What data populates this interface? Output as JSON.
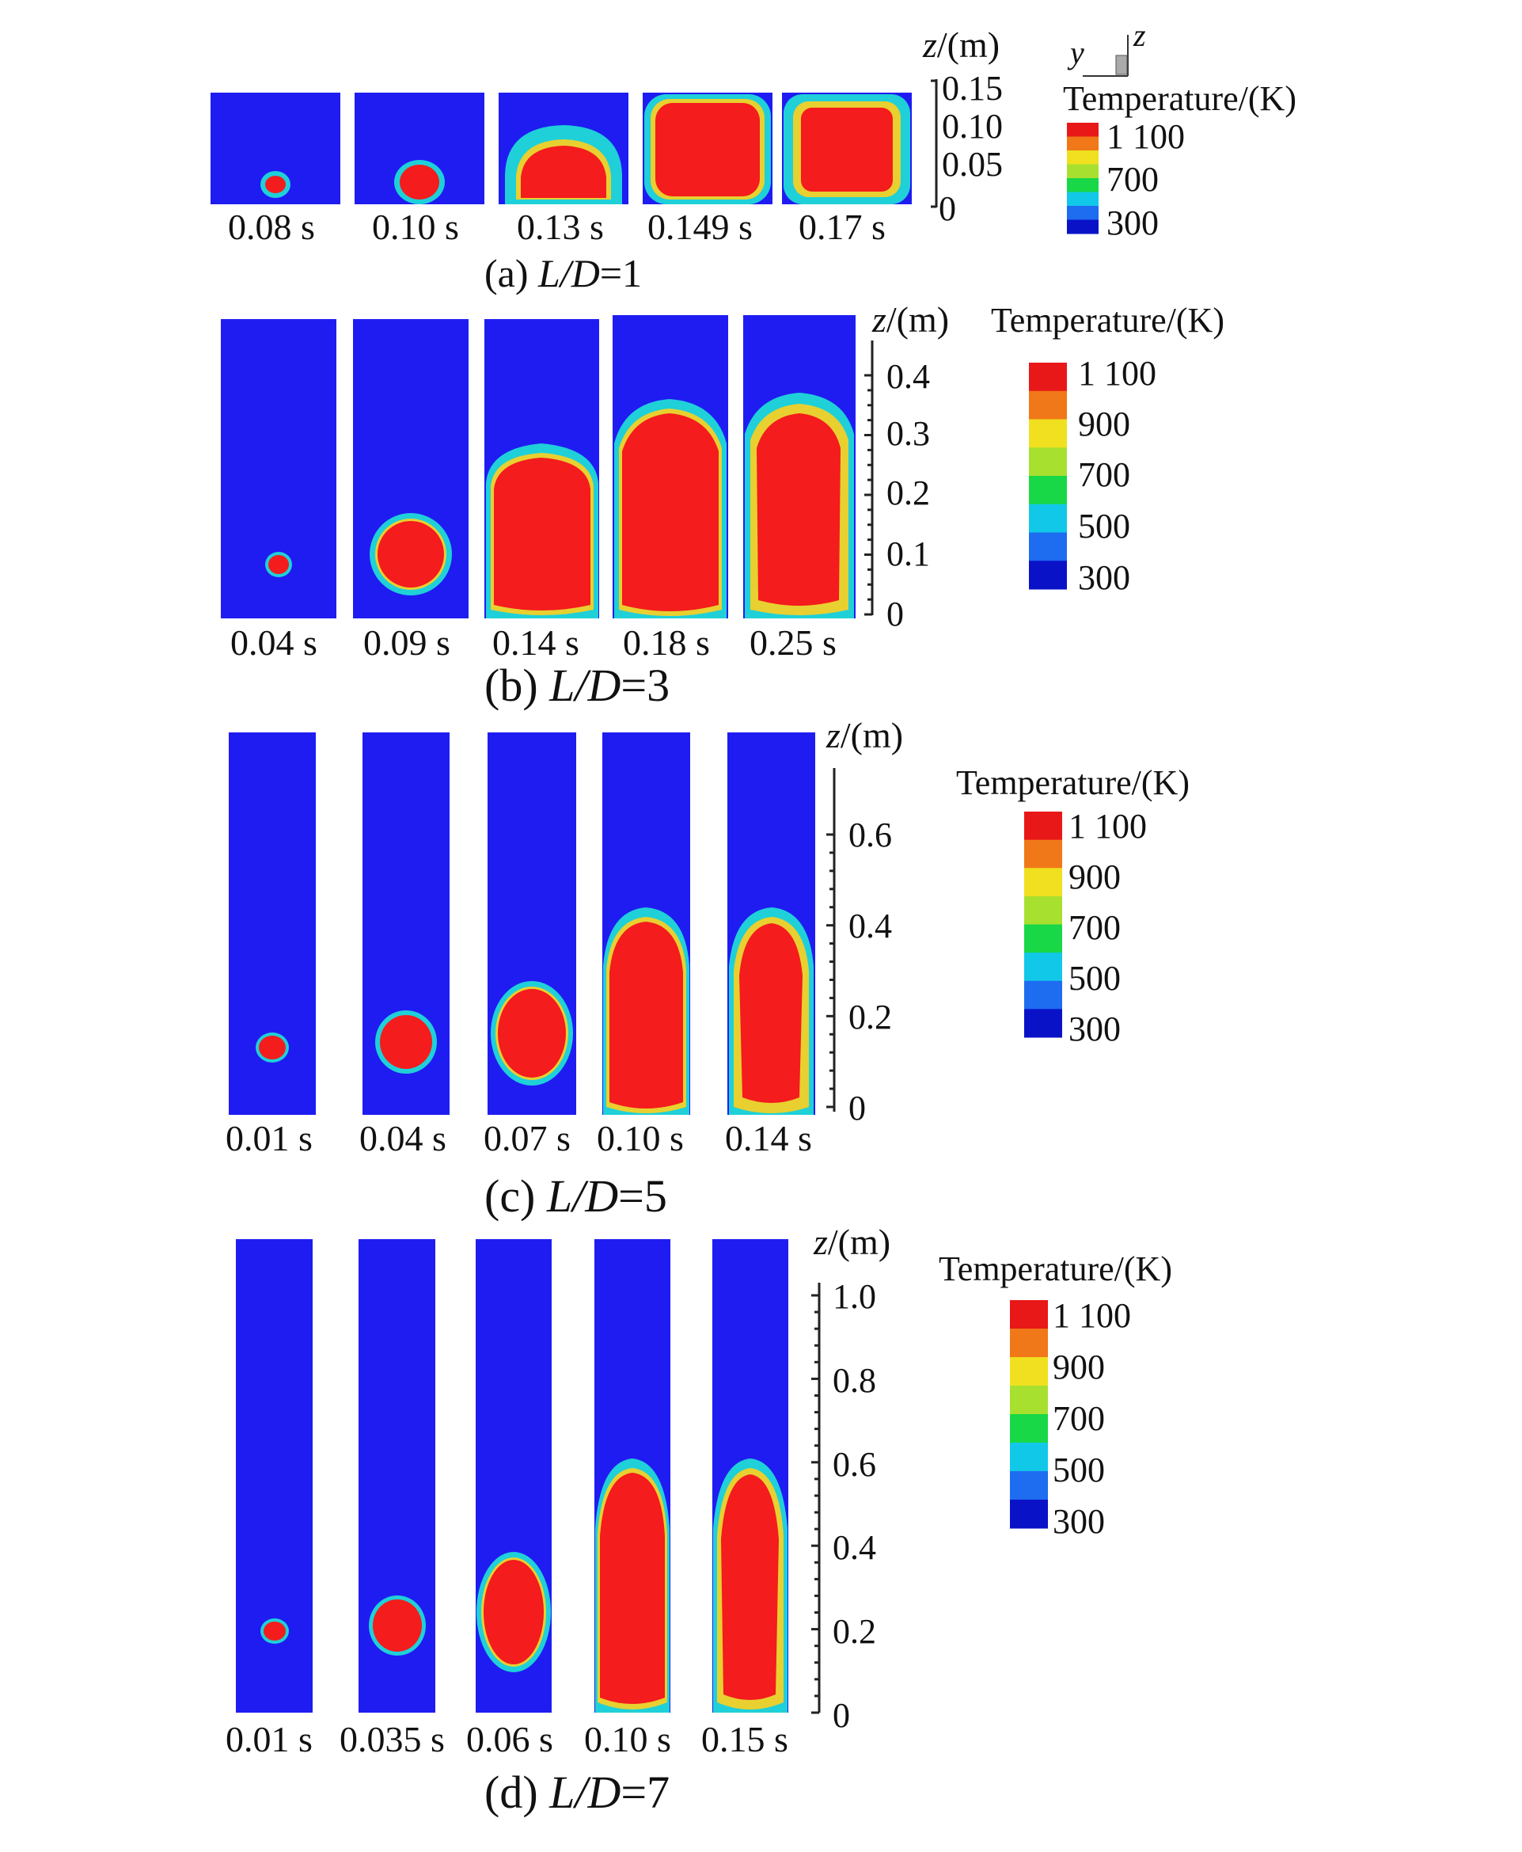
{
  "panels": [
    {
      "id": "a",
      "caption_prefix": "(a) ",
      "caption_var": "L/D",
      "caption_value": "=1",
      "axis_label_var": "z",
      "axis_label_unit": "/(m)",
      "ticks": [
        "0.15",
        "0.10",
        "0.05",
        "0"
      ],
      "tick_values": [
        0.15,
        0.1,
        0.05,
        0
      ],
      "axis_max": 0.15,
      "times": [
        "0.08 s",
        "0.10 s",
        "0.13 s",
        "0.149 s",
        "0.17 s"
      ],
      "legend_title": "Temperature/(K)",
      "legend_labels": [
        "1 100",
        "700",
        "300"
      ],
      "coord_axes": [
        "y",
        "z"
      ]
    },
    {
      "id": "b",
      "caption_prefix": "(b) ",
      "caption_var": "L/D",
      "caption_value": "=3",
      "axis_label_var": "z",
      "axis_label_unit": "/(m)",
      "ticks": [
        "0.4",
        "0.3",
        "0.2",
        "0.1",
        "0"
      ],
      "tick_values": [
        0.4,
        0.3,
        0.2,
        0.1,
        0
      ],
      "times": [
        "0.04 s",
        "0.09 s",
        "0.14 s",
        "0.18 s",
        "0.25 s"
      ],
      "legend_title": "Temperature/(K)",
      "legend_labels": [
        "1 100",
        "900",
        "700",
        "500",
        "300"
      ]
    },
    {
      "id": "c",
      "caption_prefix": "(c) ",
      "caption_var": "L/D",
      "caption_value": "=5",
      "axis_label_var": "z",
      "axis_label_unit": "/(m)",
      "ticks": [
        "0.6",
        "0.4",
        "0.2",
        "0"
      ],
      "tick_values": [
        0.6,
        0.4,
        0.2,
        0
      ],
      "times": [
        "0.01 s",
        "0.04 s",
        "0.07 s",
        "0.10 s",
        "0.14 s"
      ],
      "legend_title": "Temperature/(K)",
      "legend_labels": [
        "1 100",
        "900",
        "700",
        "500",
        "300"
      ]
    },
    {
      "id": "d",
      "caption_prefix": "(d) ",
      "caption_var": "L/D",
      "caption_value": "=7",
      "axis_label_var": "z",
      "axis_label_unit": "/(m)",
      "ticks": [
        "1.0",
        "0.8",
        "0.6",
        "0.4",
        "0.2",
        "0"
      ],
      "tick_values": [
        1.0,
        0.8,
        0.6,
        0.4,
        0.2,
        0
      ],
      "times": [
        "0.01 s",
        "0.035 s",
        "0.06 s",
        "0.10 s",
        "0.15 s"
      ],
      "legend_title": "Temperature/(K)",
      "legend_labels": [
        "1 100",
        "900",
        "700",
        "500",
        "300"
      ]
    }
  ],
  "colormap": [
    "#0a12c8",
    "#1e6cf0",
    "#12c8e8",
    "#18d848",
    "#a8e030",
    "#f0e020",
    "#f07818",
    "#e81818"
  ],
  "background_color": "#1f1cf2",
  "flame_color": "#f41c1c"
}
